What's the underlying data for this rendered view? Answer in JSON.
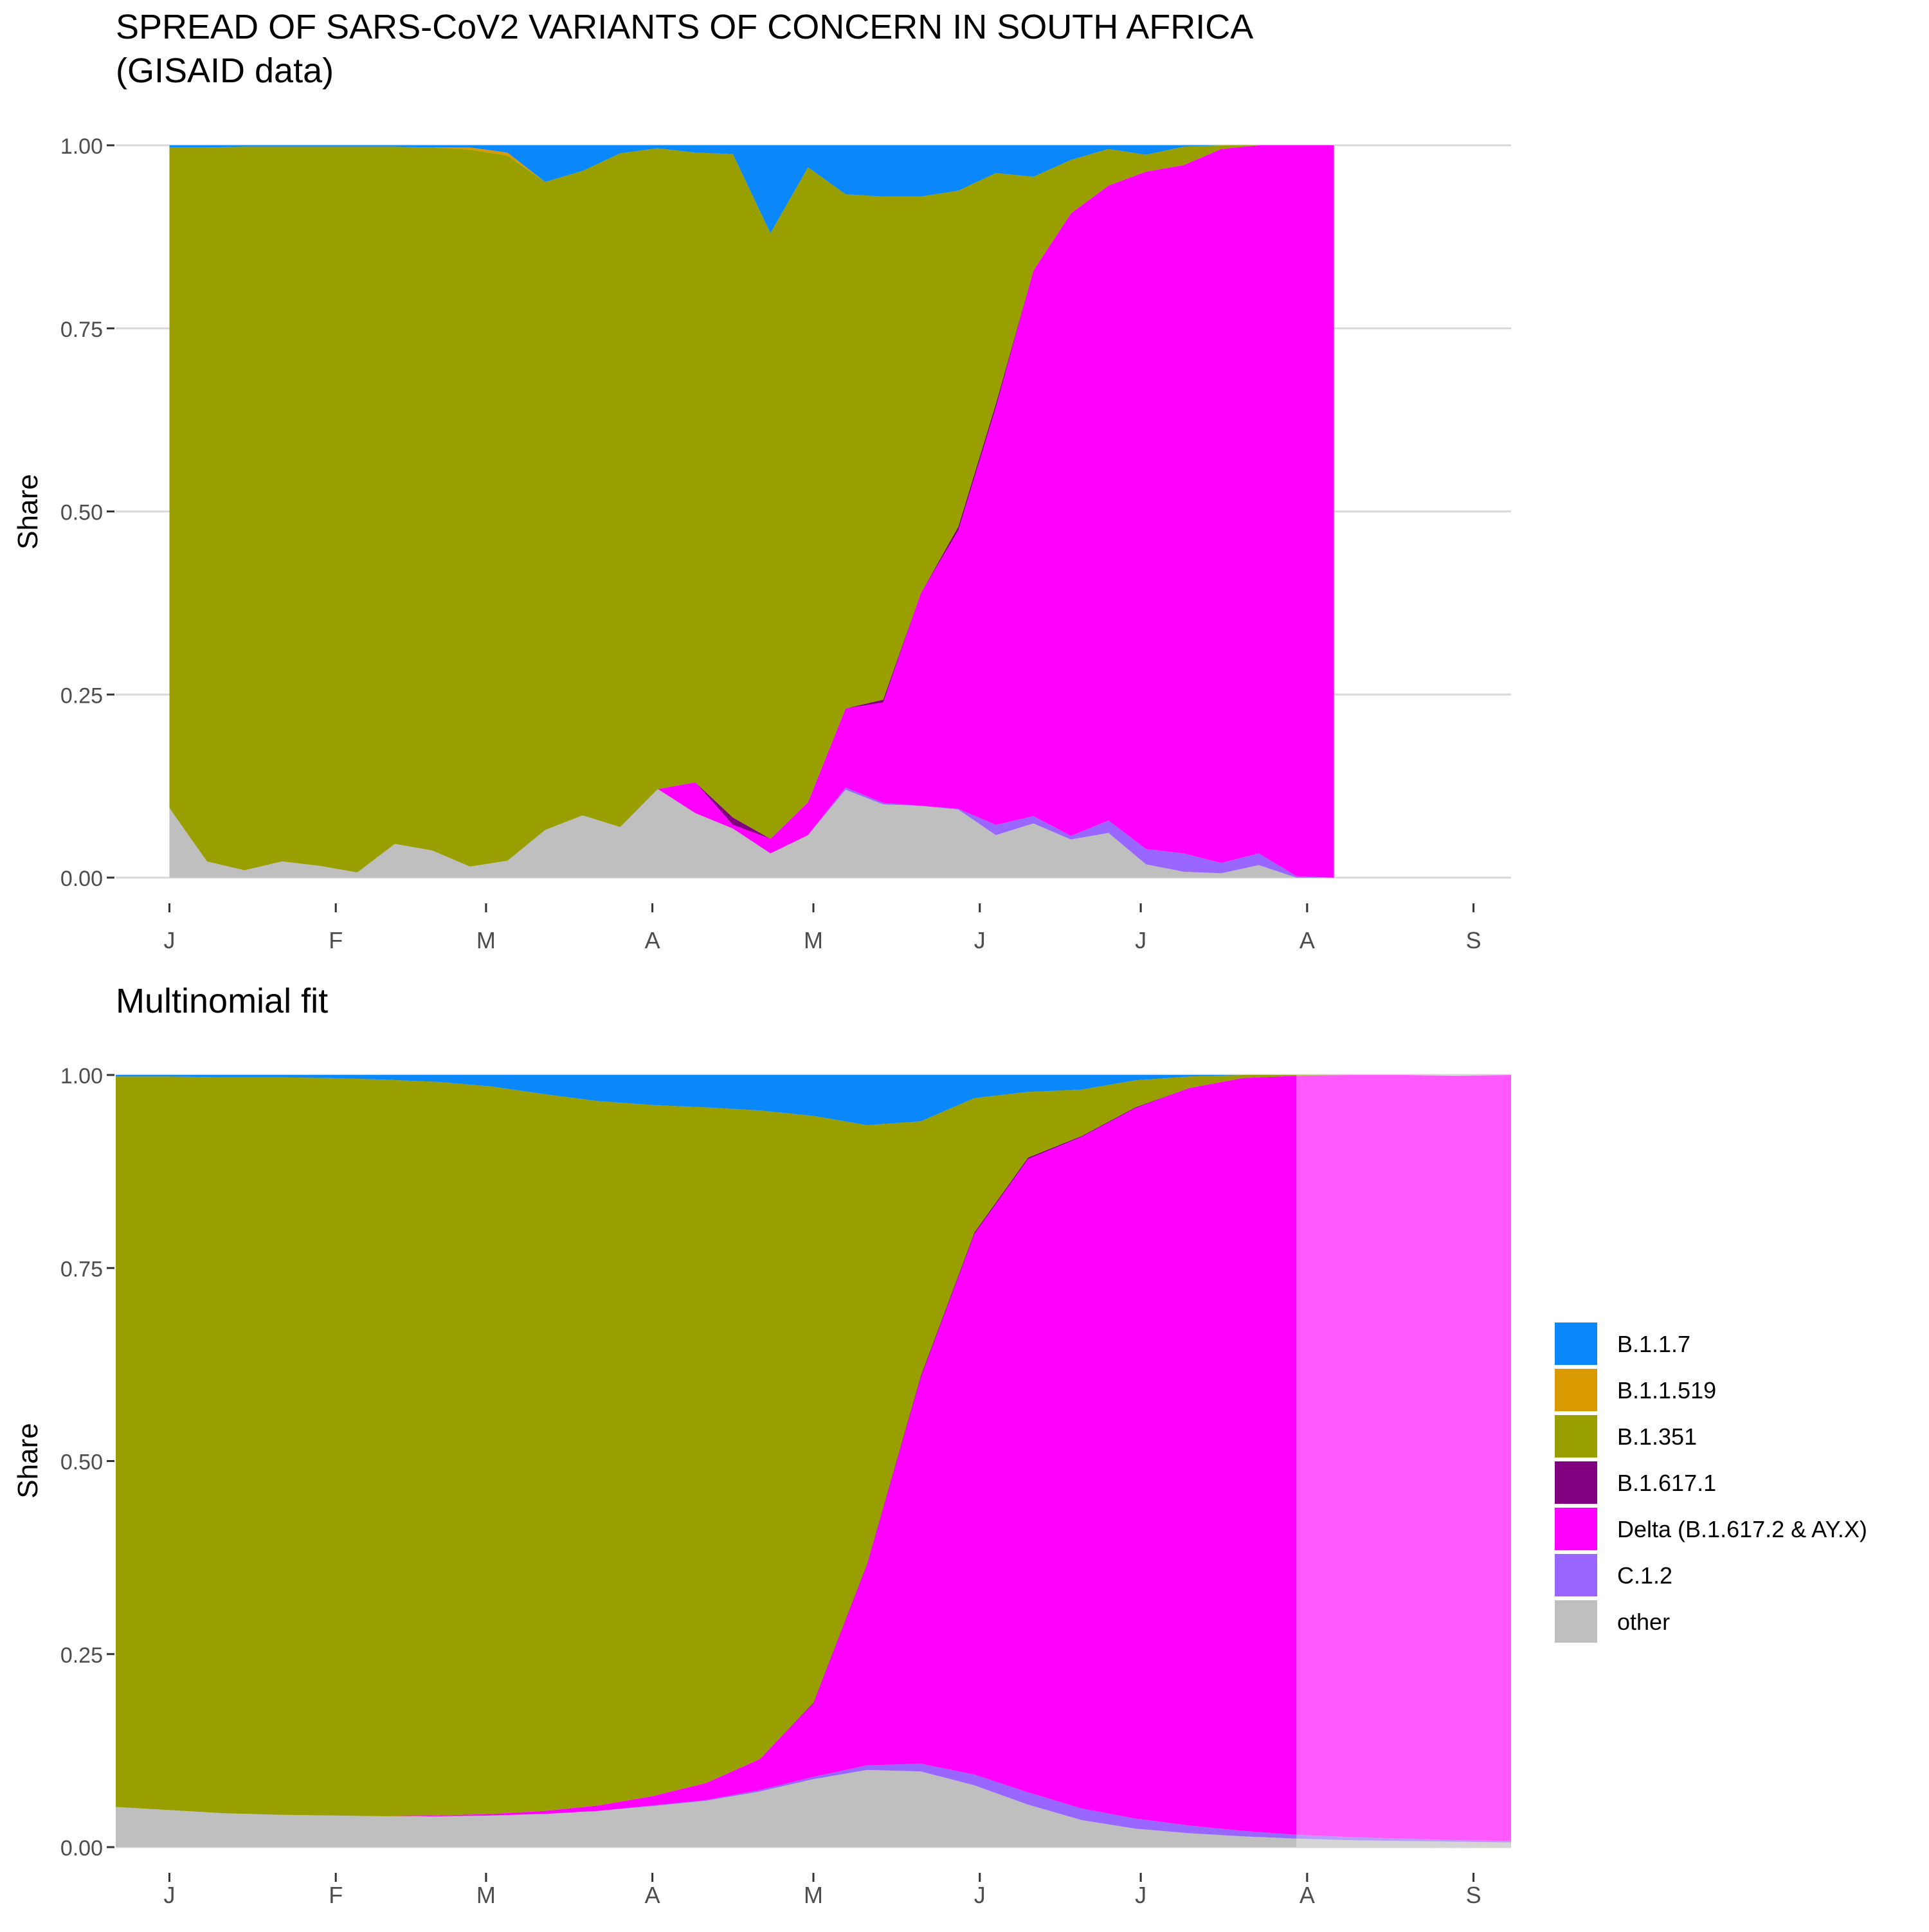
{
  "chart_data": [
    {
      "type": "area",
      "title_line1": "SPREAD OF SARS-CoV2 VARIANTS OF CONCERN IN SOUTH AFRICA",
      "title_line2": "(GISAID data)",
      "ylabel": "Share",
      "ylim": [
        0,
        1
      ],
      "yticks": [
        "0.00",
        "0.25",
        "0.50",
        "0.75",
        "1.00"
      ],
      "xticks": [
        "J",
        "F",
        "M",
        "A",
        "M",
        "J",
        "J",
        "A",
        "S"
      ],
      "series_order": [
        "B.1.1.7",
        "B.1.1.519",
        "B.1.351",
        "B.1.617.1",
        "Delta (B.1.617.2 & AY.X)",
        "C.1.2",
        "other"
      ],
      "x": [
        0,
        7,
        14,
        21,
        28,
        35,
        42,
        49,
        56,
        63,
        70,
        77,
        84,
        91,
        98,
        105,
        112,
        119,
        126,
        133,
        140,
        147,
        154,
        161,
        168,
        175,
        182,
        189,
        196,
        203,
        210,
        217
      ],
      "series": [
        {
          "name": "other",
          "values": [
            0.095,
            0.022,
            0.01,
            0.022,
            0.016,
            0.007,
            0.046,
            0.037,
            0.015,
            0.023,
            0.065,
            0.085,
            0.069,
            0.121,
            0.088,
            0.067,
            0.033,
            0.058,
            0.12,
            0.1,
            0.098,
            0.093,
            0.058,
            0.074,
            0.052,
            0.061,
            0.018,
            0.008,
            0.006,
            0.017,
            0.0,
            0.0
          ]
        },
        {
          "name": "C.1.2",
          "values": [
            0,
            0,
            0,
            0,
            0,
            0,
            0,
            0,
            0,
            0,
            0,
            0,
            0,
            0,
            0,
            0,
            0,
            0,
            0.003,
            0.002,
            0,
            0.001,
            0.014,
            0.01,
            0.005,
            0.017,
            0.021,
            0.025,
            0.014,
            0.016,
            0.002,
            0
          ]
        },
        {
          "name": "Delta (B.1.617.2 & AY.X)",
          "values": [
            0,
            0,
            0,
            0,
            0,
            0,
            0,
            0,
            0,
            0,
            0,
            0,
            0,
            0,
            0.042,
            0.005,
            0.02,
            0.045,
            0.108,
            0.137,
            0.29,
            0.38,
            0.57,
            0.745,
            0.85,
            0.867,
            0.925,
            0.94,
            0.975,
            0.967,
            0.998,
            1.0
          ]
        },
        {
          "name": "B.1.617.1",
          "values": [
            0,
            0,
            0,
            0,
            0,
            0,
            0,
            0,
            0,
            0,
            0,
            0,
            0,
            0,
            0,
            0.01,
            0,
            0,
            0,
            0.004,
            0,
            0.005,
            0.005,
            0,
            0,
            0,
            0,
            0,
            0,
            0,
            0,
            0
          ]
        },
        {
          "name": "B.1.351",
          "values": [
            0.902,
            0.975,
            0.988,
            0.976,
            0.982,
            0.991,
            0.952,
            0.96,
            0.979,
            0.963,
            0.885,
            0.88,
            0.92,
            0.875,
            0.86,
            0.906,
            0.827,
            0.867,
            0.702,
            0.687,
            0.542,
            0.459,
            0.315,
            0.128,
            0.073,
            0.05,
            0.023,
            0.025,
            0.005,
            0,
            0,
            0
          ]
        },
        {
          "name": "B.1.1.519",
          "values": [
            0,
            0,
            0,
            0,
            0,
            0,
            0,
            0,
            0.003,
            0.004,
            0,
            0,
            0,
            0,
            0,
            0,
            0,
            0,
            0,
            0,
            0,
            0,
            0,
            0,
            0,
            0,
            0,
            0,
            0,
            0,
            0,
            0
          ]
        },
        {
          "name": "B.1.1.7",
          "values": [
            0.003,
            0.003,
            0.002,
            0.002,
            0.002,
            0.002,
            0.002,
            0.003,
            0.003,
            0.01,
            0.05,
            0.035,
            0.011,
            0.004,
            0.01,
            0.012,
            0.12,
            0.03,
            0.067,
            0.07,
            0.07,
            0.062,
            0.038,
            0.043,
            0.02,
            0.005,
            0.013,
            0.002,
            0,
            0,
            0,
            0
          ]
        }
      ]
    },
    {
      "type": "area",
      "title": "Multinomial fit",
      "ylabel": "Share",
      "ylim": [
        0,
        1
      ],
      "yticks": [
        "0.00",
        "0.25",
        "0.50",
        "0.75",
        "1.00"
      ],
      "xticks": [
        "J",
        "F",
        "M",
        "A",
        "M",
        "J",
        "J",
        "A",
        "S"
      ],
      "legend_position": "right",
      "projection_start_day": 210,
      "x": [
        -10,
        0,
        10,
        20,
        30,
        40,
        50,
        60,
        70,
        80,
        90,
        100,
        110,
        120,
        130,
        140,
        150,
        160,
        170,
        180,
        190,
        200,
        210,
        220,
        230,
        240,
        250
      ],
      "series": [
        {
          "name": "other",
          "values": [
            0.052,
            0.048,
            0.044,
            0.042,
            0.041,
            0.04,
            0.04,
            0.041,
            0.043,
            0.047,
            0.053,
            0.06,
            0.072,
            0.088,
            0.1,
            0.098,
            0.08,
            0.055,
            0.035,
            0.024,
            0.018,
            0.014,
            0.011,
            0.009,
            0.008,
            0.007,
            0.006
          ]
        },
        {
          "name": "C.1.2",
          "values": [
            0,
            0,
            0,
            0,
            0,
            0,
            0,
            0,
            0,
            0,
            0.001,
            0.001,
            0.002,
            0.003,
            0.006,
            0.01,
            0.014,
            0.016,
            0.015,
            0.013,
            0.01,
            0.007,
            0.005,
            0.004,
            0.003,
            0.002,
            0.002
          ]
        },
        {
          "name": "Delta (B.1.617.2 & AY.X)",
          "values": [
            0,
            0,
            0,
            0,
            0,
            0,
            0.001,
            0.002,
            0.004,
            0.007,
            0.012,
            0.022,
            0.04,
            0.095,
            0.26,
            0.5,
            0.7,
            0.82,
            0.87,
            0.92,
            0.955,
            0.975,
            0.983,
            0.987,
            0.989,
            0.99,
            0.992
          ]
        },
        {
          "name": "B.1.617.1",
          "values": [
            0,
            0,
            0,
            0,
            0,
            0,
            0,
            0,
            0,
            0,
            0,
            0,
            0,
            0.001,
            0.001,
            0.002,
            0.002,
            0.002,
            0.001,
            0.001,
            0,
            0,
            0,
            0,
            0,
            0,
            0
          ]
        },
        {
          "name": "B.1.351",
          "values": [
            0.946,
            0.95,
            0.953,
            0.955,
            0.955,
            0.954,
            0.95,
            0.942,
            0.928,
            0.912,
            0.895,
            0.875,
            0.84,
            0.76,
            0.568,
            0.33,
            0.174,
            0.085,
            0.06,
            0.035,
            0.015,
            0.004,
            0.001,
            0,
            0,
            0,
            0
          ]
        },
        {
          "name": "B.1.1.519",
          "values": [
            0,
            0,
            0,
            0,
            0,
            0,
            0,
            0,
            0,
            0,
            0,
            0,
            0,
            0,
            0,
            0,
            0,
            0,
            0,
            0,
            0,
            0,
            0,
            0,
            0,
            0,
            0
          ]
        },
        {
          "name": "B.1.1.7",
          "values": [
            0.002,
            0.002,
            0.003,
            0.003,
            0.004,
            0.006,
            0.009,
            0.015,
            0.025,
            0.034,
            0.039,
            0.042,
            0.046,
            0.053,
            0.065,
            0.06,
            0.03,
            0.022,
            0.019,
            0.007,
            0.002,
            0,
            0,
            0,
            0,
            0,
            0
          ]
        }
      ]
    }
  ],
  "legend": {
    "items": [
      {
        "label": "B.1.1.7",
        "color": "#0A88F9"
      },
      {
        "label": "B.1.1.519",
        "color": "#D99A00"
      },
      {
        "label": "B.1.351",
        "color": "#999F00"
      },
      {
        "label": "B.1.617.1",
        "color": "#800080"
      },
      {
        "label": "Delta (B.1.617.2 & AY.X)",
        "color": "#FF00FF"
      },
      {
        "label": "C.1.2",
        "color": "#9966FF"
      },
      {
        "label": "other",
        "color": "#BFBFBF"
      }
    ]
  }
}
